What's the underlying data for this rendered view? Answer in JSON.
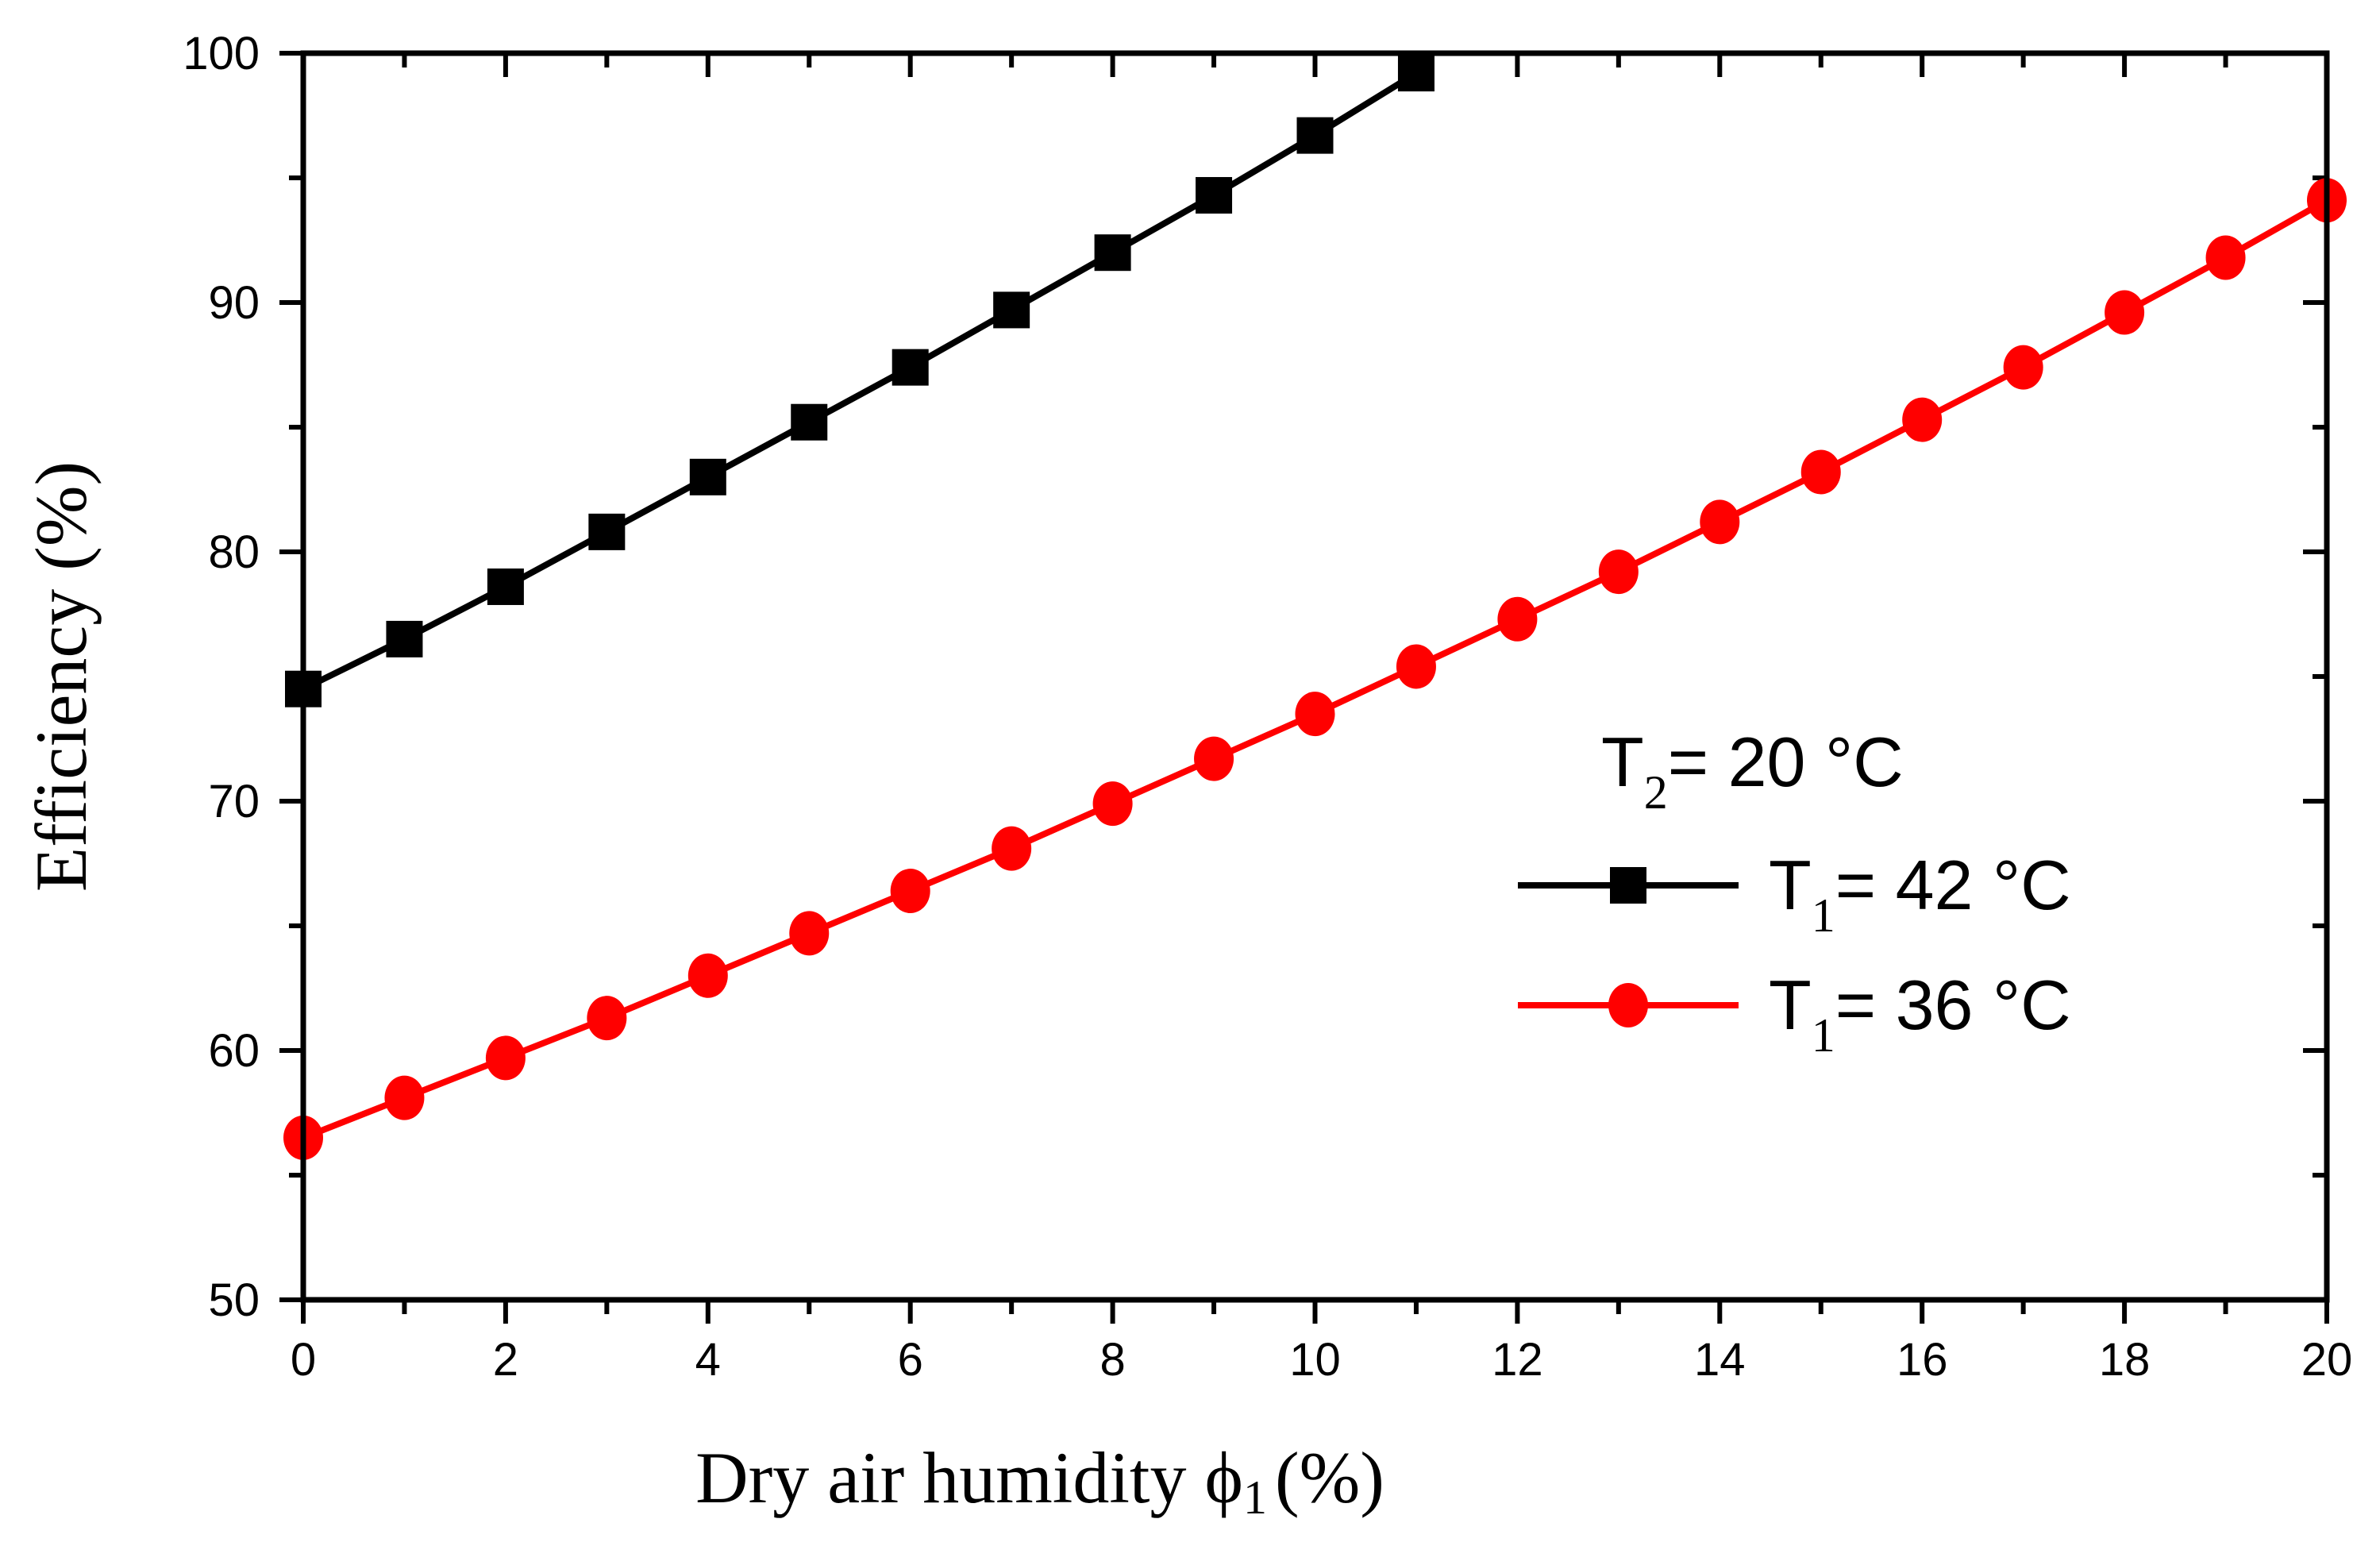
{
  "chart_data": {
    "type": "line",
    "xlabel": "Dry air humidity",
    "xlabel_symbol": "ϕ",
    "xlabel_subscript": "1",
    "xlabel_unit": "(%)",
    "ylabel": "Efficiency (%)",
    "xlim": [
      0,
      20
    ],
    "ylim": [
      50,
      100
    ],
    "x_ticks": [
      0,
      2,
      4,
      6,
      8,
      10,
      12,
      14,
      16,
      18,
      20
    ],
    "y_ticks": [
      50,
      60,
      70,
      80,
      90,
      100
    ],
    "grid": false,
    "legend": {
      "placement": "center-right",
      "title_main": "T",
      "title_sub": "2",
      "title_rest": "= 20 °C"
    },
    "series": [
      {
        "name": "T1= 42 °C",
        "label_main": "T",
        "label_sub": "1",
        "label_rest": "= 42 °C",
        "color": "#000000",
        "marker": "square",
        "x": [
          0,
          1,
          2,
          3,
          4,
          5,
          6,
          7,
          8,
          9,
          10,
          11
        ],
        "y": [
          74.5,
          76.5,
          78.6,
          80.8,
          83.0,
          85.2,
          87.4,
          89.7,
          92.0,
          94.3,
          96.7,
          99.2
        ]
      },
      {
        "name": "T1= 36 °C",
        "label_main": "T",
        "label_sub": "1",
        "label_rest": "= 36 °C",
        "color": "#ff0000",
        "marker": "circle",
        "x": [
          0,
          1,
          2,
          3,
          4,
          5,
          6,
          7,
          8,
          9,
          10,
          11,
          12,
          13,
          14,
          15,
          16,
          17,
          18,
          19,
          20
        ],
        "y": [
          56.5,
          58.1,
          59.7,
          61.3,
          63.0,
          64.7,
          66.4,
          68.1,
          69.9,
          71.7,
          73.5,
          75.4,
          77.3,
          79.2,
          81.2,
          83.2,
          85.3,
          87.4,
          89.6,
          91.8,
          94.1
        ]
      }
    ]
  }
}
